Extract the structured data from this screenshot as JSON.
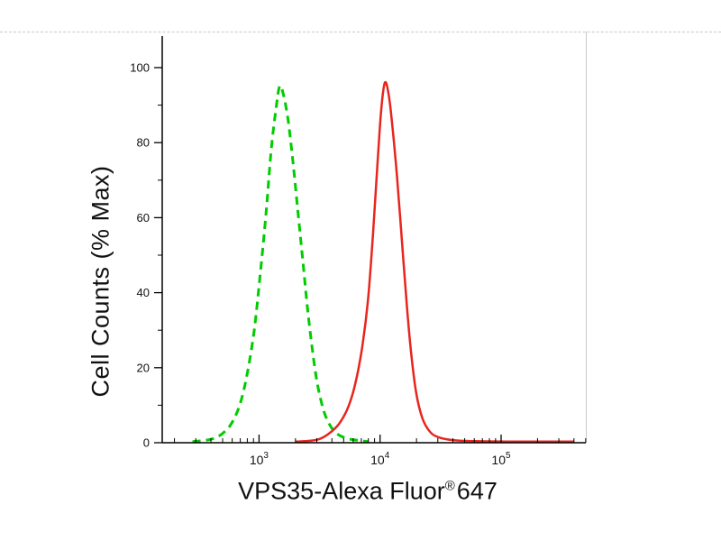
{
  "frame": {
    "background": "#ffffff",
    "border_color": "#c9c9c9",
    "top_border_style": "dashed",
    "right_border_style": "solid"
  },
  "chart_data": {
    "type": "line",
    "subtype": "flow-cytometry-histogram",
    "title": "",
    "xlabel_prefix": "VPS35-Alexa Fluor",
    "xlabel_registered_mark": "®",
    "xlabel_suffix": "647",
    "ylabel": "Cell Counts (% Max)",
    "x_scale": "log10",
    "xlog_range": [
      2.2,
      5.7
    ],
    "ylim": [
      0,
      100
    ],
    "y_major_ticks": [
      0,
      20,
      40,
      60,
      80,
      100
    ],
    "y_minor_tick_step": 10,
    "x_major_tick_exponents": [
      3,
      4,
      5
    ],
    "x_tick_base": "10",
    "axis_color": "#000000",
    "tick_label_color": "#111111",
    "grid": false,
    "legend": null,
    "series": [
      {
        "name": "green-dashed",
        "style": "dashed",
        "color": "#00cc00",
        "line_width": 3,
        "dash": [
          9,
          6
        ],
        "peak_estimate": {
          "x": 1500,
          "y_percent": 95
        },
        "x_log10": [
          2.45,
          2.55,
          2.63,
          2.7,
          2.77,
          2.84,
          2.9,
          2.96,
          3.01,
          3.06,
          3.1,
          3.14,
          3.17,
          3.2,
          3.24,
          3.28,
          3.32,
          3.36,
          3.4,
          3.44,
          3.48,
          3.53,
          3.58,
          3.64,
          3.72,
          3.82,
          3.9
        ],
        "y": [
          0.3,
          0.6,
          1.2,
          2.5,
          5,
          10,
          18,
          30,
          45,
          62,
          78,
          89,
          95,
          93,
          86,
          75,
          62,
          49,
          36,
          25,
          16,
          9,
          5,
          2.5,
          1.2,
          0.6,
          0.3
        ]
      },
      {
        "name": "red-solid",
        "style": "solid",
        "color": "#e8251d",
        "line_width": 2.5,
        "dash": null,
        "peak_estimate": {
          "x": 11000,
          "y_percent": 96
        },
        "x_log10": [
          3.3,
          3.42,
          3.5,
          3.58,
          3.66,
          3.73,
          3.79,
          3.85,
          3.9,
          3.94,
          3.98,
          4.01,
          4.04,
          4.07,
          4.1,
          4.14,
          4.18,
          4.22,
          4.26,
          4.3,
          4.35,
          4.41,
          4.48,
          4.6,
          4.8,
          5.1,
          5.6
        ],
        "y": [
          0.3,
          0.5,
          1,
          2.5,
          5,
          9,
          15,
          25,
          38,
          55,
          75,
          89,
          96,
          93,
          85,
          71,
          54,
          37,
          23,
          13,
          6.5,
          3,
          1.5,
          0.7,
          0.4,
          0.3,
          0.3
        ]
      }
    ]
  }
}
